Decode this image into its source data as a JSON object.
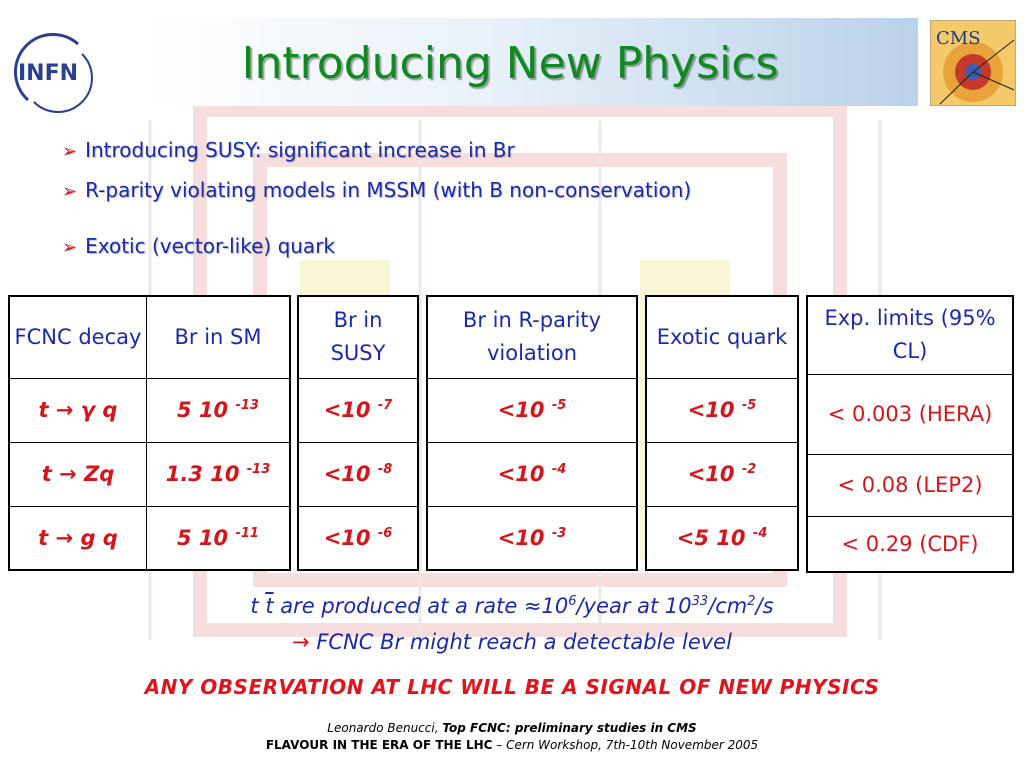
{
  "header": {
    "title": "Introducing New Physics"
  },
  "logos": {
    "left_text": "INFN",
    "right_text": "CMS"
  },
  "bullets": [
    "Introducing SUSY: significant increase in Br",
    "R-parity violating models in MSSM (with B non-conservation)",
    "Exotic (vector-like) quark"
  ],
  "table_sm": {
    "col1_header": "FCNC decay",
    "col2_header": "Br in SM",
    "rows": [
      {
        "decay_pre": "t",
        "decay_post": "q",
        "decay_particle": "γ",
        "br_mant": "5 10",
        "br_exp": "-13"
      },
      {
        "decay_pre": "t",
        "decay_post": "",
        "decay_particle": "Zq",
        "br_mant": "1.3 10",
        "br_exp": "-13"
      },
      {
        "decay_pre": "t",
        "decay_post": "q",
        "decay_particle": "g",
        "br_mant": "5 10",
        "br_exp": "-11"
      }
    ]
  },
  "table_susy": {
    "header": "Br in SUSY",
    "rows": [
      {
        "mant": "<10",
        "exp": "-7"
      },
      {
        "mant": "<10",
        "exp": "-8"
      },
      {
        "mant": "<10",
        "exp": "-6"
      }
    ]
  },
  "table_rpv": {
    "header": "Br in R-parity violation",
    "rows": [
      {
        "mant": "<10",
        "exp": "-5"
      },
      {
        "mant": "<10",
        "exp": "-4"
      },
      {
        "mant": "<10",
        "exp": "-3"
      }
    ]
  },
  "table_exotic": {
    "header": "Exotic quark",
    "rows": [
      {
        "mant": "<10",
        "exp": "-5"
      },
      {
        "mant": "<10",
        "exp": "-2"
      },
      {
        "mant": "<5 10",
        "exp": "-4"
      }
    ]
  },
  "table_limits": {
    "header": "Exp. limits (95% CL)",
    "rows": [
      "< 0.003 (HERA)",
      "< 0.08 (LEP2)",
      "< 0.29 (CDF)"
    ]
  },
  "notes": {
    "rate_pre": "t",
    "rate_tbar": "t",
    "rate_mid": " are produced at a rate ≈10",
    "rate_exp1": "6",
    "rate_mid2": "/year at 10",
    "rate_exp2": "33",
    "rate_mid3": "/cm",
    "rate_exp3": "2",
    "rate_end": "/s",
    "fcnc_arrow": "→",
    "fcnc_text": "FCNC Br might reach a detectable level",
    "conclusion": "ANY OBSERVATION AT LHC WILL BE A SIGNAL OF  NEW PHYSICS"
  },
  "footer": {
    "author": "Leonardo Benucci,",
    "talk": "Top FCNC: preliminary studies in CMS",
    "conf": "FLAVOUR IN THE ERA OF THE LHC",
    "venue": " – Cern Workshop, 7th-10th November 2005"
  }
}
